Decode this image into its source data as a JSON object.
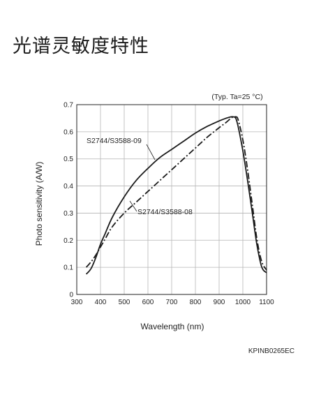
{
  "page": {
    "title": "光谱灵敏度特性"
  },
  "chart_data": {
    "type": "line",
    "title": "",
    "condition_note": "(Typ. Ta=25 °C)",
    "xlabel": "Wavelength (nm)",
    "ylabel": "Photo sensitivity (A/W)",
    "xlim": [
      300,
      1100
    ],
    "ylim": [
      0,
      0.7
    ],
    "x_ticks": [
      300,
      400,
      500,
      600,
      700,
      800,
      900,
      1000,
      1100
    ],
    "y_ticks": [
      0,
      0.1,
      0.2,
      0.3,
      0.4,
      0.5,
      0.6,
      0.7
    ],
    "x_tick_labels": [
      "300",
      "400",
      "500",
      "600",
      "700",
      "800",
      "900",
      "1000",
      "1100"
    ],
    "y_tick_labels": [
      "0",
      "0.1",
      "0.2",
      "0.3",
      "0.4",
      "0.5",
      "0.6",
      "0.7"
    ],
    "grid": true,
    "series": [
      {
        "name": "S2744/S3588-09",
        "style": "solid",
        "x": [
          340,
          360,
          380,
          400,
          420,
          450,
          500,
          550,
          600,
          650,
          700,
          750,
          800,
          850,
          900,
          930,
          950,
          960,
          970,
          980,
          1000,
          1020,
          1040,
          1060,
          1080,
          1100
        ],
        "y": [
          0.075,
          0.095,
          0.135,
          0.185,
          0.225,
          0.285,
          0.36,
          0.42,
          0.465,
          0.505,
          0.535,
          0.565,
          0.595,
          0.62,
          0.64,
          0.65,
          0.655,
          0.655,
          0.65,
          0.62,
          0.53,
          0.42,
          0.3,
          0.18,
          0.1,
          0.08
        ]
      },
      {
        "name": "S2744/S3588-08",
        "style": "dash-dot",
        "x": [
          340,
          360,
          380,
          400,
          420,
          450,
          500,
          550,
          600,
          650,
          700,
          750,
          800,
          850,
          900,
          930,
          950,
          960,
          970,
          980,
          1000,
          1020,
          1040,
          1060,
          1080,
          1100
        ],
        "y": [
          0.1,
          0.12,
          0.145,
          0.175,
          0.205,
          0.25,
          0.3,
          0.34,
          0.38,
          0.42,
          0.46,
          0.5,
          0.54,
          0.58,
          0.615,
          0.635,
          0.65,
          0.655,
          0.655,
          0.645,
          0.57,
          0.46,
          0.33,
          0.2,
          0.12,
          0.09
        ]
      }
    ]
  },
  "figure_code": "KPINB0265EC"
}
